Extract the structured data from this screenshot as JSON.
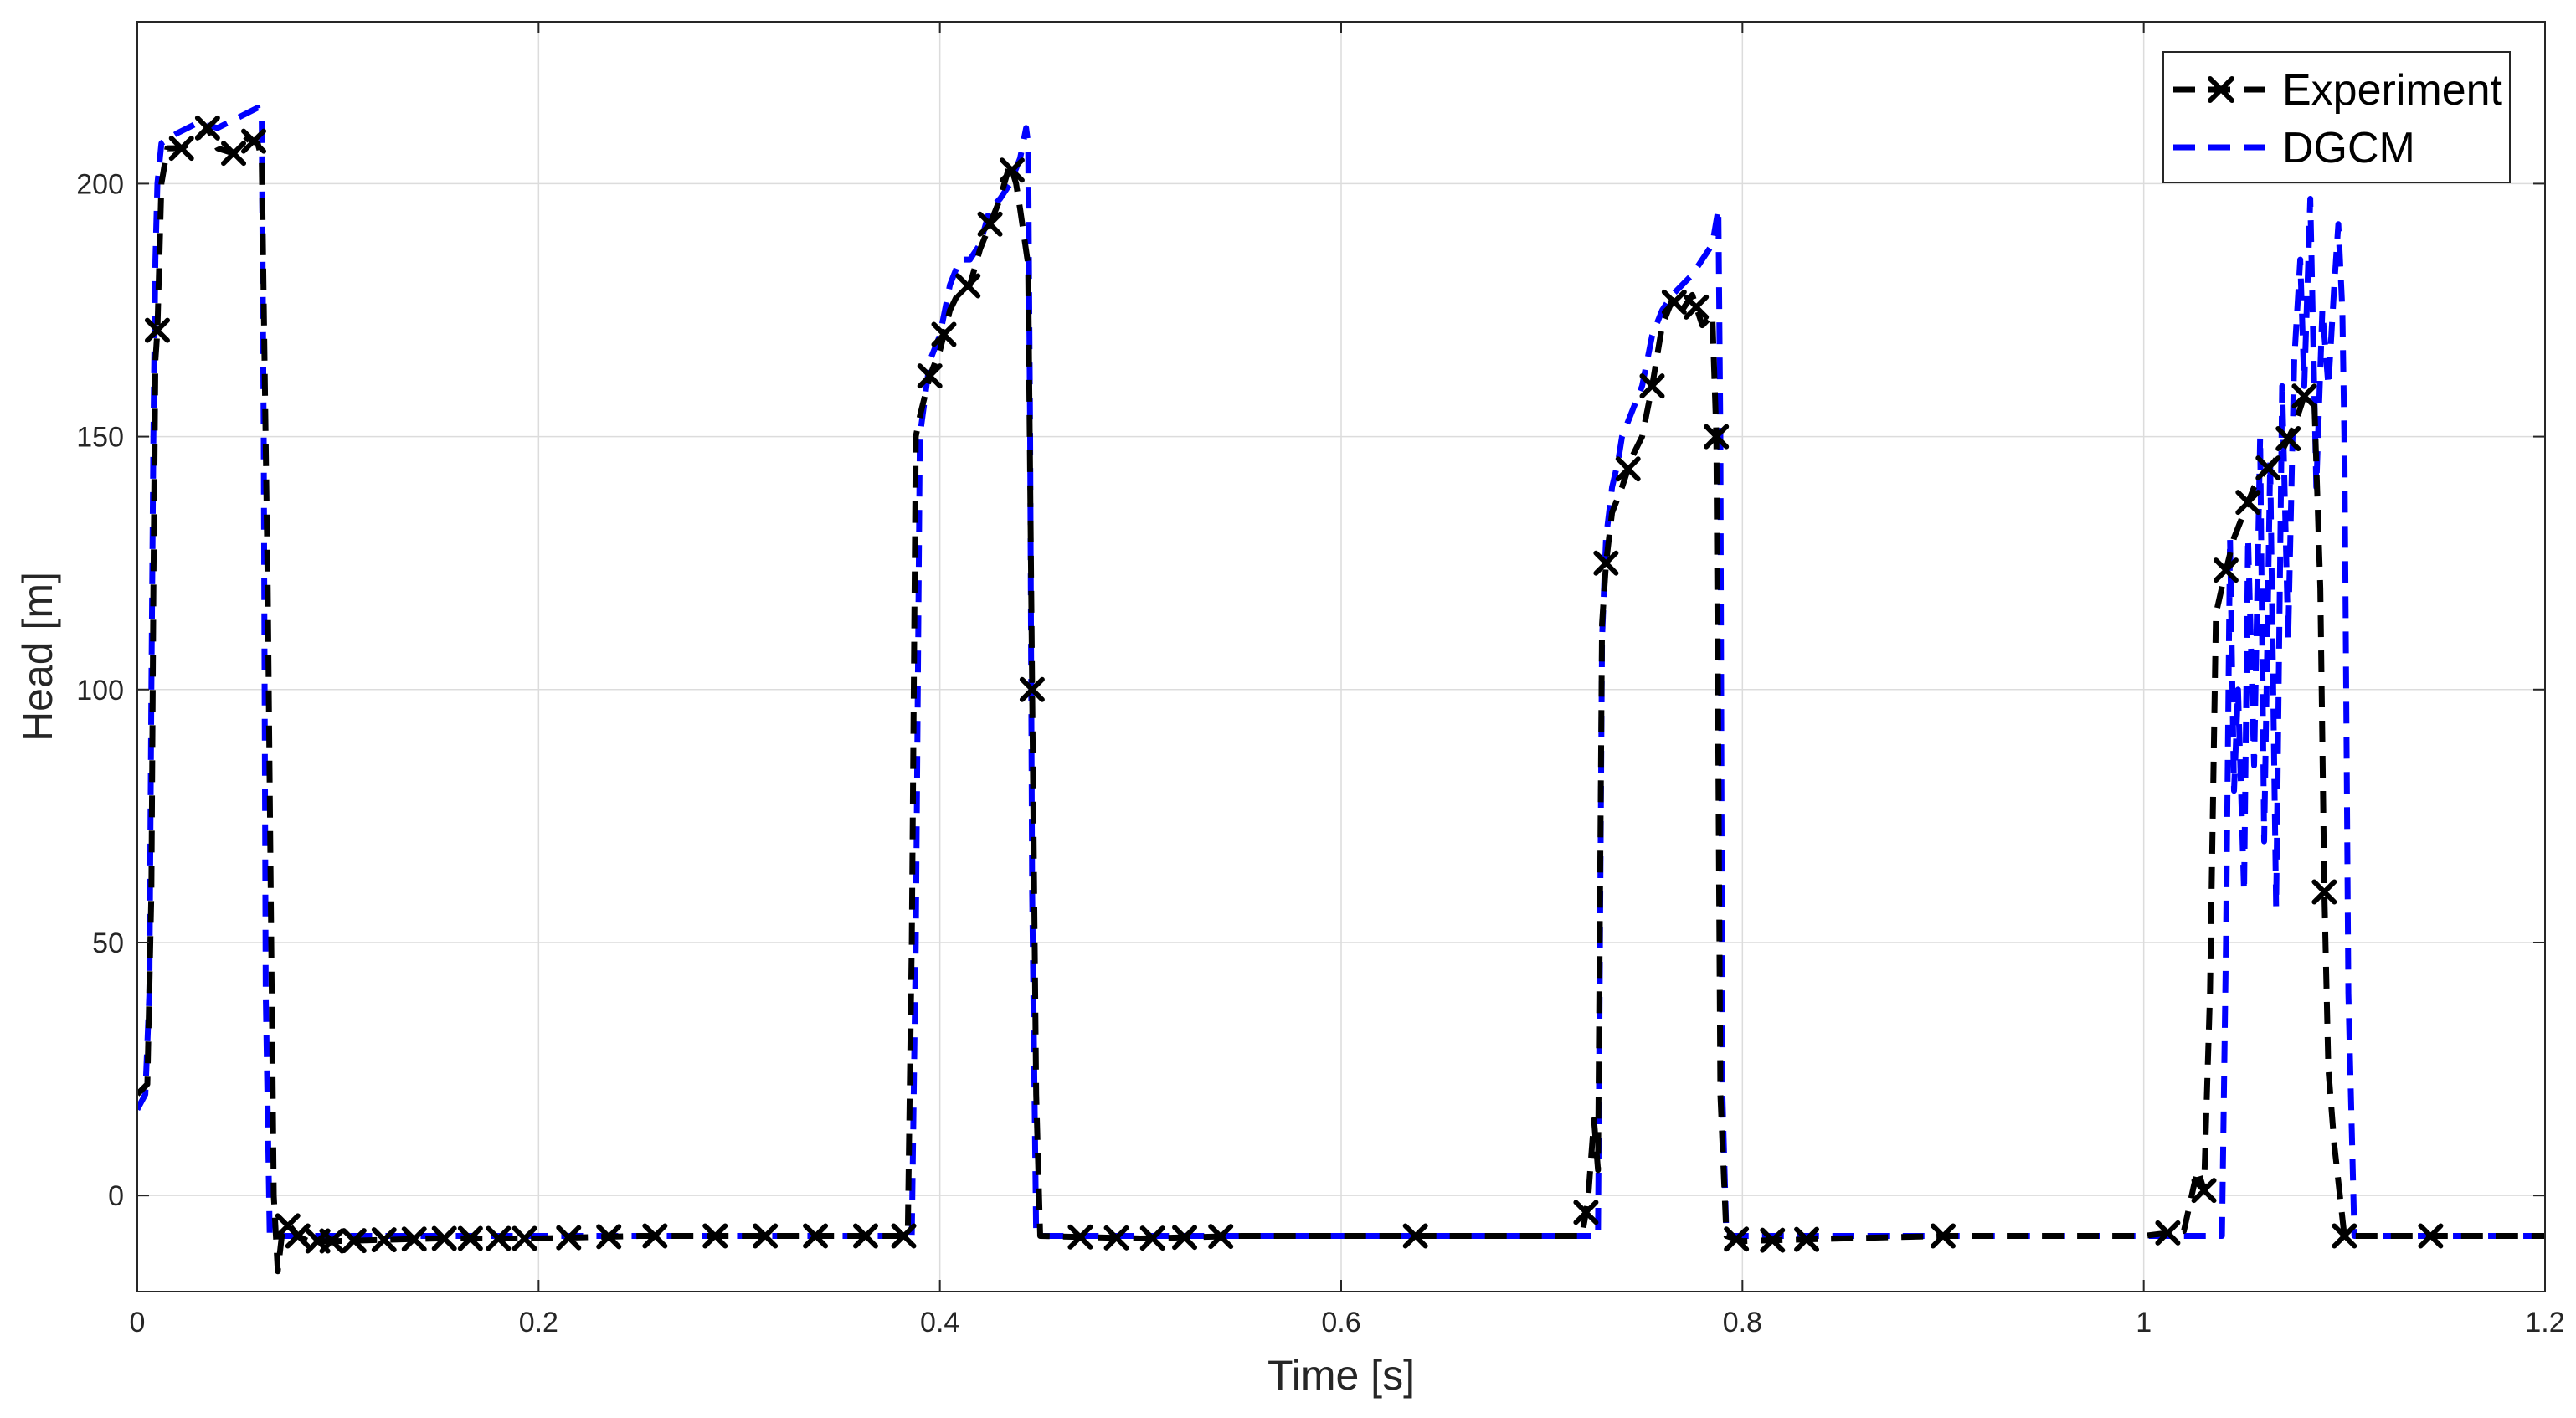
{
  "chart_data": {
    "type": "line",
    "title": "",
    "xlabel": "Time [s]",
    "ylabel": "Head [m]",
    "xlim": [
      0,
      1.2
    ],
    "ylim": [
      -19,
      232
    ],
    "xticks": [
      0,
      0.2,
      0.4,
      0.6,
      0.8,
      1,
      1.2
    ],
    "xtick_labels": [
      "0",
      "0.2",
      "0.4",
      "0.6",
      "0.8",
      "1",
      "1.2"
    ],
    "yticks": [
      0,
      50,
      100,
      150,
      200
    ],
    "ytick_labels": [
      "0",
      "50",
      "100",
      "150",
      "200"
    ],
    "grid": true,
    "legend_position": "top-right",
    "series": [
      {
        "name": "Experiment",
        "color": "#000000",
        "line_style": "dashed",
        "marker": "x",
        "x": [
          0.0,
          0.005,
          0.007,
          0.008,
          0.009,
          0.01,
          0.012,
          0.015,
          0.022,
          0.03,
          0.035,
          0.04,
          0.048,
          0.055,
          0.06,
          0.062,
          0.065,
          0.068,
          0.07,
          0.072,
          0.074,
          0.076,
          0.08,
          0.085,
          0.09,
          0.1,
          0.15,
          0.2,
          0.25,
          0.3,
          0.35,
          0.38,
          0.384,
          0.386,
          0.388,
          0.39,
          0.395,
          0.4,
          0.405,
          0.41,
          0.415,
          0.42,
          0.425,
          0.43,
          0.435,
          0.438,
          0.44,
          0.444,
          0.446,
          0.448,
          0.45,
          0.5,
          0.55,
          0.6,
          0.65,
          0.7,
          0.72,
          0.723,
          0.726,
          0.728,
          0.73,
          0.732,
          0.735,
          0.74,
          0.745,
          0.75,
          0.755,
          0.76,
          0.765,
          0.77,
          0.775,
          0.78,
          0.785,
          0.787,
          0.789,
          0.792,
          0.8,
          0.85,
          0.9,
          0.95,
          1.0,
          1.02,
          1.025,
          1.027,
          1.03,
          1.033,
          1.036,
          1.04,
          1.045,
          1.05,
          1.055,
          1.06,
          1.065,
          1.07,
          1.075,
          1.08,
          1.085,
          1.088,
          1.09,
          1.092,
          1.095,
          1.1,
          1.15,
          1.2
        ],
        "y": [
          20,
          22,
          60,
          120,
          165,
          171,
          200,
          207,
          207,
          209,
          211,
          207,
          206,
          209,
          208,
          205,
          120,
          0,
          -15,
          -8,
          -6,
          -6,
          -8,
          -9,
          -9,
          -9,
          -8.5,
          -8.5,
          -8,
          -8,
          -8,
          -8,
          -8,
          50,
          150,
          154,
          162,
          167,
          175,
          179,
          180,
          187,
          192,
          197,
          204,
          200,
          195,
          184,
          100,
          20,
          -8,
          -8.5,
          -8,
          -8,
          -8,
          -8,
          -8,
          -1,
          15,
          5,
          113,
          125,
          135,
          140,
          146,
          150,
          160,
          172,
          177,
          175,
          178,
          172,
          174,
          150,
          20,
          -8,
          -9,
          -8.5,
          -8,
          -8,
          -8,
          -7,
          2,
          5,
          1,
          40,
          115,
          122,
          130,
          135,
          140,
          143,
          145,
          148,
          152,
          158,
          157,
          120,
          60,
          25,
          10,
          -8,
          -8,
          -8
        ]
      },
      {
        "name": "DGCM",
        "color": "#0000FF",
        "line_style": "dashed",
        "marker": "none",
        "x": [
          0.0,
          0.004,
          0.006,
          0.007,
          0.008,
          0.009,
          0.01,
          0.012,
          0.02,
          0.03,
          0.04,
          0.05,
          0.06,
          0.062,
          0.063,
          0.064,
          0.066,
          0.07,
          0.09,
          0.12,
          0.15,
          0.2,
          0.25,
          0.3,
          0.35,
          0.386,
          0.388,
          0.39,
          0.395,
          0.4,
          0.405,
          0.41,
          0.415,
          0.42,
          0.425,
          0.43,
          0.435,
          0.44,
          0.443,
          0.444,
          0.445,
          0.446,
          0.448,
          0.45,
          0.5,
          0.55,
          0.6,
          0.65,
          0.7,
          0.72,
          0.725,
          0.728,
          0.73,
          0.732,
          0.735,
          0.738,
          0.74,
          0.745,
          0.75,
          0.755,
          0.76,
          0.765,
          0.77,
          0.775,
          0.78,
          0.785,
          0.788,
          0.789,
          0.79,
          0.792,
          0.8,
          0.85,
          0.9,
          0.95,
          1.0,
          1.02,
          1.035,
          1.039,
          1.041,
          1.043,
          1.045,
          1.047,
          1.05,
          1.052,
          1.055,
          1.058,
          1.06,
          1.063,
          1.066,
          1.069,
          1.072,
          1.075,
          1.078,
          1.08,
          1.083,
          1.086,
          1.089,
          1.092,
          1.095,
          1.097,
          1.099,
          1.1,
          1.102,
          1.105,
          1.15,
          1.2
        ],
        "y": [
          17,
          20,
          40,
          100,
          150,
          185,
          200,
          208,
          210,
          212,
          211,
          213,
          215,
          213,
          150,
          40,
          -8,
          -8,
          -8,
          -8,
          -8,
          -8,
          -8,
          -8,
          -8,
          -8,
          50,
          150,
          165,
          170,
          180,
          185,
          185,
          188,
          195,
          197,
          200,
          205,
          211,
          208,
          150,
          60,
          -8,
          -8,
          -8,
          -8,
          -8,
          -8,
          -8,
          -8,
          -8,
          -8,
          110,
          130,
          140,
          145,
          150,
          155,
          160,
          170,
          175,
          178,
          180,
          182,
          185,
          188,
          195,
          150,
          20,
          -8,
          -8,
          -8,
          -8,
          -8,
          -8,
          -8,
          -8,
          -8,
          50,
          130,
          80,
          100,
          60,
          130,
          85,
          150,
          70,
          145,
          57,
          160,
          110,
          165,
          185,
          160,
          197,
          140,
          175,
          160,
          180,
          192,
          175,
          150,
          40,
          -8,
          -8,
          -8
        ]
      }
    ],
    "marker_points": {
      "x": [
        0.01,
        0.022,
        0.035,
        0.048,
        0.058,
        0.075,
        0.08,
        0.09,
        0.097,
        0.108,
        0.123,
        0.138,
        0.153,
        0.166,
        0.18,
        0.193,
        0.215,
        0.235,
        0.258,
        0.288,
        0.313,
        0.338,
        0.363,
        0.382,
        0.395,
        0.402,
        0.414,
        0.425,
        0.436,
        0.446,
        0.47,
        0.488,
        0.506,
        0.522,
        0.54,
        0.637,
        0.722,
        0.732,
        0.743,
        0.755,
        0.766,
        0.777,
        0.787,
        0.797,
        0.815,
        0.832,
        0.9,
        1.012,
        1.03,
        1.041,
        1.052,
        1.062,
        1.072,
        1.08,
        1.09,
        1.1,
        1.143
      ]
    }
  }
}
